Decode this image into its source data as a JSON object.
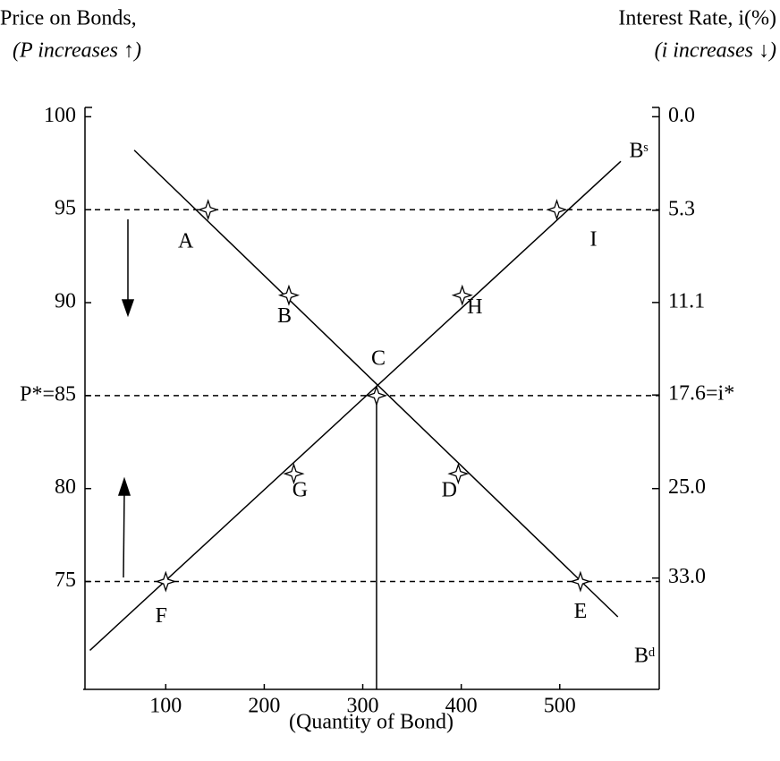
{
  "chart_data": {
    "type": "line",
    "title_left": "Price on Bonds,",
    "subtitle_left": "(P increases ↑)",
    "title_right": "Interest Rate, i(%)",
    "subtitle_right": "(i increases ↓)",
    "xlabel": "(Quantity of Bond)",
    "xlim": [
      18,
      601
    ],
    "ylim": [
      69.2,
      100.5
    ],
    "xticks": [
      100,
      200,
      300,
      400,
      500
    ],
    "yticks": [
      100,
      95,
      90,
      {
        "value": 85,
        "label": "P*=85"
      },
      80,
      75
    ],
    "y2ticks": [
      {
        "value": 0,
        "label": "0.0"
      },
      5.3,
      11.1,
      {
        "value": 17.6,
        "label": "17.6=i*"
      },
      {
        "value": 25,
        "label": "25.0"
      },
      {
        "value": 33,
        "label": "33.0"
      }
    ],
    "series": [
      {
        "name": "Bᵈ",
        "color": "#000000",
        "x": [
          68,
          559
        ],
        "values": [
          98.2,
          73.1
        ]
      },
      {
        "name": "Bˢ",
        "color": "#000000",
        "x": [
          23,
          562
        ],
        "values": [
          71.3,
          97.6
        ]
      }
    ],
    "points": [
      {
        "label": "A",
        "x": 143,
        "y": 95
      },
      {
        "label": "B",
        "x": 225,
        "y": 90.4
      },
      {
        "label": "C",
        "x": 314,
        "y": 85
      },
      {
        "label": "D",
        "x": 397,
        "y": 80.8
      },
      {
        "label": "E",
        "x": 521,
        "y": 75
      },
      {
        "label": "F",
        "x": 100,
        "y": 75
      },
      {
        "label": "G",
        "x": 230,
        "y": 80.8
      },
      {
        "label": "H",
        "x": 401,
        "y": 90.4
      },
      {
        "label": "I",
        "x": 497,
        "y": 95
      }
    ],
    "hlines": [
      95,
      85,
      75
    ]
  }
}
